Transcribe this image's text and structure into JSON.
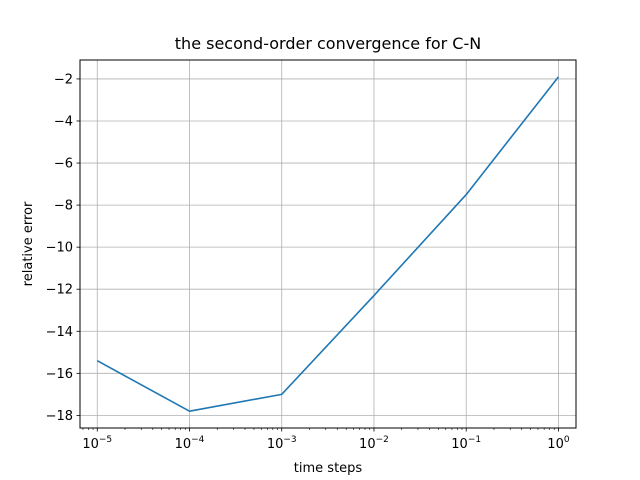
{
  "chart_data": {
    "type": "line",
    "title": "the second-order convergence for C-N",
    "xlabel": "time steps",
    "ylabel": "relative error",
    "xscale": "log",
    "x": [
      1e-05,
      0.0001,
      0.001,
      0.01,
      0.1,
      1
    ],
    "series": [
      {
        "values": [
          -15.4,
          -17.8,
          -17.0,
          -12.3,
          -7.5,
          -1.9
        ],
        "color": "#1f77b4"
      }
    ],
    "xlim": [
      6.5e-06,
      1.55
    ],
    "ylim": [
      -18.6,
      -1.1
    ],
    "xticks": [
      1e-05,
      0.0001,
      0.001,
      0.01,
      0.1,
      1
    ],
    "xtick_exponents": [
      "−5",
      "−4",
      "−3",
      "−2",
      "−1",
      "0"
    ],
    "yticks": [
      -18,
      -16,
      -14,
      -12,
      -10,
      -8,
      -6,
      -4,
      -2
    ],
    "ytick_labels": [
      "−18",
      "−16",
      "−14",
      "−12",
      "−10",
      "−8",
      "−6",
      "−4",
      "−2"
    ],
    "grid": true,
    "legend": false
  }
}
